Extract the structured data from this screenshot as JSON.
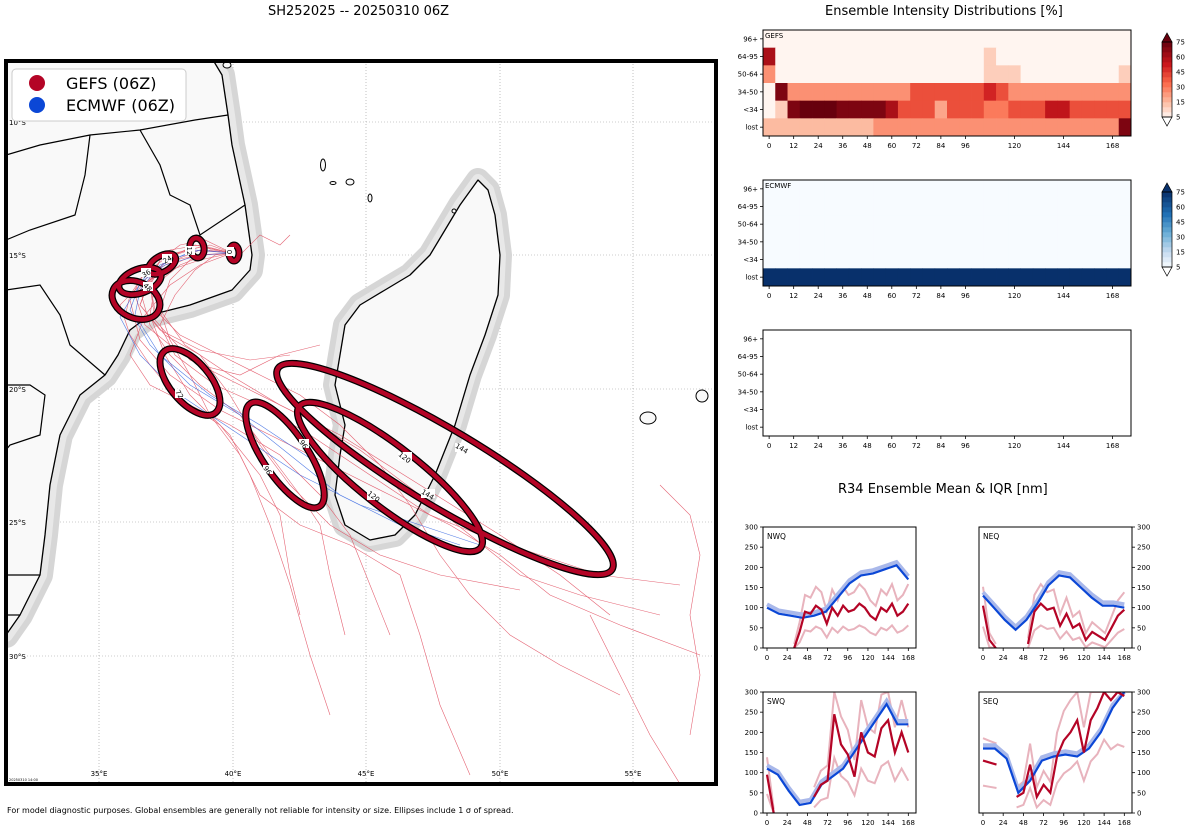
{
  "map": {
    "title": "SH252025 -- 20250310 06Z",
    "legend": [
      {
        "label": "GEFS (06Z)",
        "color": "#b40426"
      },
      {
        "label": "ECMWF (06Z)",
        "color": "#0b47d6"
      }
    ],
    "lon_ticks": [
      "35°E",
      "40°E",
      "45°E",
      "50°E",
      "55°E"
    ],
    "lat_ticks": [
      "10°S",
      "15°S",
      "20°S",
      "25°S",
      "30°S"
    ],
    "ellipse_labels": [
      "0",
      "12",
      "24",
      "36",
      "48",
      "72",
      "96",
      "96",
      "120",
      "120",
      "144",
      "144"
    ],
    "stamp": "20250310 14:00",
    "footnote": "For model diagnostic purposes. Global ensembles are generally not reliable for intensity or size. Ellipses include 1 σ of spread."
  },
  "chart_data": [
    {
      "type": "heatmap",
      "title": "Ensemble Intensity Distributions [%]",
      "panel": "GEFS",
      "row_labels": [
        "96+",
        "64-95",
        "50-64",
        "34-50",
        "<34",
        "lost"
      ],
      "x_ticks": [
        "0",
        "12",
        "24",
        "36",
        "48",
        "60",
        "72",
        "84",
        "96",
        "120",
        "144",
        "168"
      ],
      "colorbar": {
        "ticks": [
          "75",
          "60",
          "45",
          "30",
          "15",
          "5"
        ],
        "range": [
          0,
          75
        ]
      },
      "values": [
        [
          0,
          0,
          0,
          0,
          0,
          0,
          0,
          0,
          0,
          0,
          0,
          0,
          0,
          0,
          0,
          0,
          0,
          0,
          0,
          0,
          0,
          0,
          0,
          0,
          0,
          0,
          0,
          0,
          0,
          0
        ],
        [
          60,
          0,
          0,
          0,
          0,
          0,
          0,
          0,
          0,
          0,
          0,
          0,
          0,
          0,
          0,
          0,
          0,
          0,
          10,
          0,
          0,
          0,
          0,
          0,
          0,
          0,
          0,
          0,
          0,
          0
        ],
        [
          25,
          0,
          0,
          0,
          0,
          0,
          0,
          0,
          0,
          0,
          0,
          0,
          0,
          0,
          0,
          0,
          0,
          0,
          10,
          10,
          10,
          0,
          0,
          0,
          0,
          0,
          0,
          0,
          0,
          10
        ],
        [
          0,
          70,
          25,
          25,
          25,
          25,
          25,
          25,
          25,
          25,
          25,
          25,
          40,
          40,
          40,
          40,
          40,
          40,
          50,
          40,
          25,
          25,
          25,
          25,
          25,
          25,
          25,
          25,
          25,
          25
        ],
        [
          0,
          10,
          70,
          85,
          75,
          85,
          70,
          70,
          70,
          70,
          60,
          40,
          40,
          40,
          20,
          40,
          40,
          40,
          30,
          30,
          40,
          40,
          40,
          55,
          55,
          40,
          40,
          40,
          40,
          40
        ],
        [
          15,
          15,
          15,
          15,
          15,
          15,
          15,
          15,
          15,
          25,
          25,
          25,
          25,
          25,
          25,
          25,
          25,
          25,
          25,
          25,
          25,
          25,
          25,
          25,
          25,
          25,
          25,
          25,
          25,
          70
        ]
      ]
    },
    {
      "type": "heatmap",
      "panel": "ECMWF",
      "row_labels": [
        "96+",
        "64-95",
        "50-64",
        "34-50",
        "<34",
        "lost"
      ],
      "x_ticks": [
        "0",
        "12",
        "24",
        "36",
        "48",
        "60",
        "72",
        "84",
        "96",
        "120",
        "144",
        "168"
      ],
      "colorbar": {
        "ticks": [
          "75",
          "60",
          "45",
          "30",
          "15",
          "5"
        ],
        "range": [
          0,
          75
        ]
      },
      "values": [
        [
          0,
          0,
          0,
          0,
          0,
          0,
          0,
          0,
          0,
          0,
          0,
          0,
          0,
          0,
          0,
          0,
          0,
          0,
          0,
          0,
          0,
          0,
          0,
          0,
          0,
          0,
          0,
          0,
          0,
          0
        ],
        [
          0,
          0,
          0,
          0,
          0,
          0,
          0,
          0,
          0,
          0,
          0,
          0,
          0,
          0,
          0,
          0,
          0,
          0,
          0,
          0,
          0,
          0,
          0,
          0,
          0,
          0,
          0,
          0,
          0,
          0
        ],
        [
          0,
          0,
          0,
          0,
          0,
          0,
          0,
          0,
          0,
          0,
          0,
          0,
          0,
          0,
          0,
          0,
          0,
          0,
          0,
          0,
          0,
          0,
          0,
          0,
          0,
          0,
          0,
          0,
          0,
          0
        ],
        [
          0,
          0,
          0,
          0,
          0,
          0,
          0,
          0,
          0,
          0,
          0,
          0,
          0,
          0,
          0,
          0,
          0,
          0,
          0,
          0,
          0,
          0,
          0,
          0,
          0,
          0,
          0,
          0,
          0,
          0
        ],
        [
          0,
          0,
          0,
          0,
          0,
          0,
          0,
          0,
          0,
          0,
          0,
          0,
          0,
          0,
          0,
          0,
          0,
          0,
          0,
          0,
          0,
          0,
          0,
          0,
          0,
          0,
          0,
          0,
          0,
          0
        ],
        [
          100,
          100,
          100,
          100,
          100,
          100,
          100,
          100,
          100,
          100,
          100,
          100,
          100,
          100,
          100,
          100,
          100,
          100,
          100,
          100,
          100,
          100,
          100,
          100,
          100,
          100,
          100,
          100,
          100,
          100
        ]
      ]
    },
    {
      "type": "heatmap",
      "panel": "",
      "row_labels": [
        "96+",
        "64-95",
        "50-64",
        "34-50",
        "<34",
        "lost"
      ],
      "x_ticks": [
        "0",
        "12",
        "24",
        "36",
        "48",
        "60",
        "72",
        "84",
        "96",
        "120",
        "144",
        "168"
      ],
      "values": []
    },
    {
      "type": "line",
      "title": "R34 Ensemble Mean & IQR [nm]",
      "panels": [
        {
          "name": "NWQ",
          "ylim": [
            0,
            300
          ],
          "y_ticks": [
            "300",
            "250",
            "200",
            "150",
            "100",
            "50",
            "0"
          ],
          "x_ticks": [
            "0",
            "24",
            "48",
            "72",
            "96",
            "120",
            "144",
            "168"
          ],
          "axis_side": "left",
          "ecmwf": [
            100,
            85,
            80,
            75,
            80,
            90,
            125,
            160,
            180,
            185,
            195,
            205,
            170
          ],
          "gefs": [
            null,
            null,
            null,
            null,
            null,
            0,
            40,
            90,
            85,
            105,
            95,
            60,
            100,
            80,
            105,
            90,
            95,
            110,
            100,
            80,
            70,
            100,
            90,
            110,
            80,
            90,
            110
          ]
        },
        {
          "name": "NEQ",
          "ylim": [
            0,
            300
          ],
          "y_ticks": [
            "300",
            "250",
            "200",
            "150",
            "100",
            "50",
            "0"
          ],
          "x_ticks": [
            "0",
            "24",
            "48",
            "72",
            "96",
            "120",
            "144",
            "168"
          ],
          "axis_side": "right",
          "ecmwf": [
            130,
            100,
            70,
            45,
            70,
            110,
            155,
            180,
            175,
            150,
            125,
            105,
            105,
            100
          ],
          "gefs": [
            105,
            20,
            0,
            null,
            null,
            null,
            null,
            10,
            90,
            110,
            95,
            100,
            55,
            85,
            50,
            60,
            20,
            40,
            30,
            20,
            50,
            80,
            95
          ]
        },
        {
          "name": "SWQ",
          "ylim": [
            0,
            300
          ],
          "y_ticks": [
            "300",
            "250",
            "200",
            "150",
            "100",
            "50",
            "0"
          ],
          "x_ticks": [
            "0",
            "24",
            "48",
            "72",
            "96",
            "120",
            "144",
            "168"
          ],
          "axis_side": "left",
          "ecmwf": [
            110,
            95,
            55,
            20,
            25,
            70,
            90,
            110,
            150,
            190,
            230,
            270,
            220,
            220
          ],
          "gefs": [
            95,
            0,
            null,
            null,
            null,
            110,
            null,
            40,
            70,
            80,
            245,
            170,
            145,
            90,
            200,
            150,
            140,
            210,
            230,
            150,
            200,
            150
          ]
        },
        {
          "name": "SEQ",
          "ylim": [
            0,
            300
          ],
          "y_ticks": [
            "300",
            "250",
            "200",
            "150",
            "100",
            "50",
            "0"
          ],
          "x_ticks": [
            "0",
            "24",
            "48",
            "72",
            "96",
            "120",
            "144",
            "168"
          ],
          "axis_side": "right",
          "ecmwf": [
            160,
            160,
            135,
            50,
            80,
            130,
            140,
            145,
            140,
            160,
            200,
            260,
            310
          ],
          "gefs": [
            130,
            125,
            120,
            null,
            null,
            40,
            50,
            120,
            40,
            70,
            50,
            140,
            180,
            200,
            230,
            150,
            230,
            260,
            320,
            280,
            300,
            290
          ]
        }
      ]
    }
  ]
}
